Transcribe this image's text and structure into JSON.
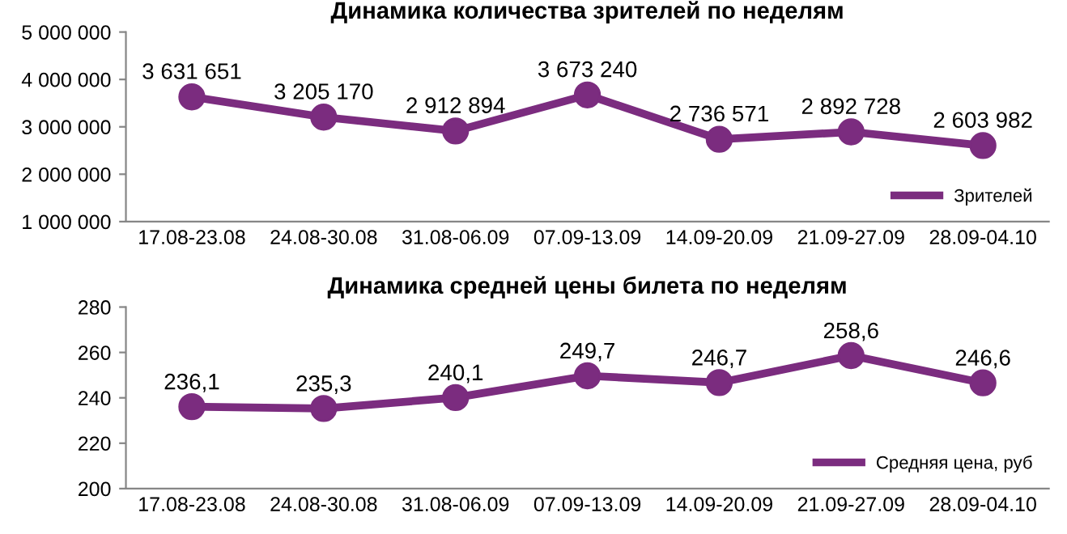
{
  "chart_data": [
    {
      "type": "line",
      "title": "Динамика количества зрителей по неделям",
      "categories": [
        "17.08-23.08",
        "24.08-30.08",
        "31.08-06.09",
        "07.09-13.09",
        "14.09-20.09",
        "21.09-27.09",
        "28.09-04.10"
      ],
      "series": [
        {
          "name": "Зрителей",
          "color": "#7b2c7f",
          "values": [
            3631651,
            3205170,
            2912894,
            3673240,
            2736571,
            2892728,
            2603982
          ],
          "value_labels": [
            "3 631 651",
            "3 205 170",
            "2 912 894",
            "3 673 240",
            "2 736 571",
            "2 892 728",
            "2 603 982"
          ]
        }
      ],
      "ylim": [
        1000000,
        5000000
      ],
      "yticks": [
        {
          "value": 1000000,
          "label": "1 000 000"
        },
        {
          "value": 2000000,
          "label": "2 000 000"
        },
        {
          "value": 3000000,
          "label": "3 000 000"
        },
        {
          "value": 4000000,
          "label": "4 000 000"
        },
        {
          "value": 5000000,
          "label": "5 000 000"
        }
      ],
      "grid": false,
      "legend": "bottom right",
      "marker": "circle",
      "line_style": "solid"
    },
    {
      "type": "line",
      "title": "Динамика средней цены билета по неделям",
      "categories": [
        "17.08-23.08",
        "24.08-30.08",
        "31.08-06.09",
        "07.09-13.09",
        "14.09-20.09",
        "21.09-27.09",
        "28.09-04.10"
      ],
      "series": [
        {
          "name": "Средняя цена, руб",
          "color": "#7b2c7f",
          "values": [
            236.1,
            235.3,
            240.1,
            249.7,
            246.7,
            258.6,
            246.6
          ],
          "value_labels": [
            "236,1",
            "235,3",
            "240,1",
            "249,7",
            "246,7",
            "258,6",
            "246,6"
          ]
        }
      ],
      "ylim": [
        200,
        280
      ],
      "yticks": [
        200,
        220,
        240,
        260,
        280
      ],
      "grid": false,
      "legend": "bottom right",
      "marker": "circle",
      "line_style": "solid"
    }
  ]
}
